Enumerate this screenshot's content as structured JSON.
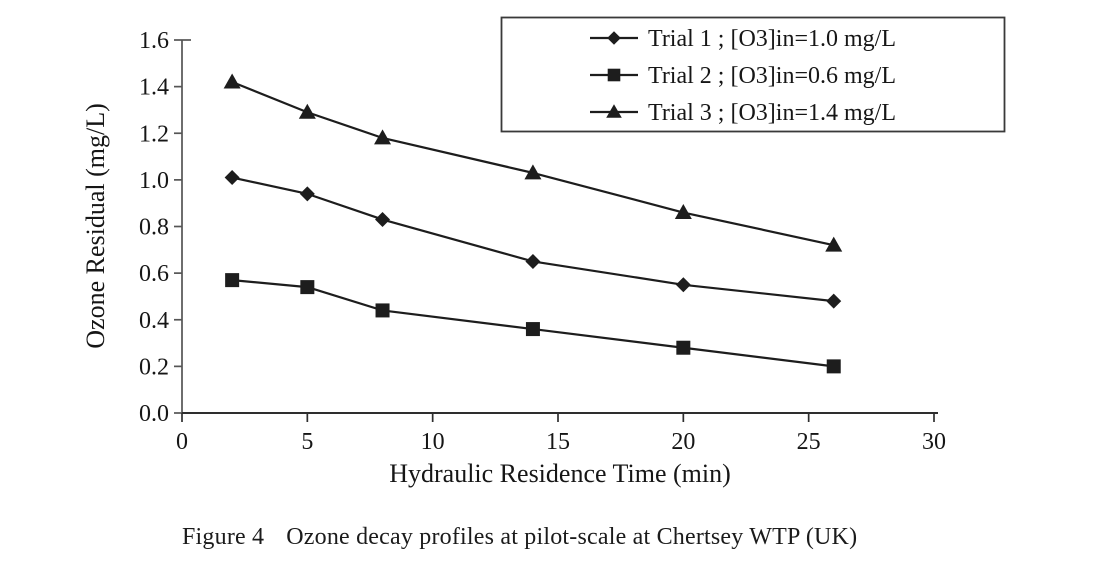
{
  "figure": {
    "caption_label": "Figure 4",
    "caption_text": "Ozone decay profiles at pilot-scale at Chertsey WTP (UK)"
  },
  "chart_data": {
    "type": "line",
    "title": "",
    "xlabel": "Hydraulic Residence Time (min)",
    "ylabel": "Ozone Residual (mg/L)",
    "xlim": [
      0,
      30
    ],
    "ylim": [
      0.0,
      1.6
    ],
    "xticks": [
      0,
      5,
      10,
      15,
      20,
      25,
      30
    ],
    "yticks": [
      0.0,
      0.2,
      0.4,
      0.6,
      0.8,
      1.0,
      1.2,
      1.4,
      1.6
    ],
    "ytick_labels": [
      "0.0",
      "0.2",
      "0.4",
      "0.6",
      "0.8",
      "1.0",
      "1.2",
      "1.4",
      "1.6"
    ],
    "grid": false,
    "legend_position": "top-right",
    "line_color": "#1d1d1d",
    "axis_color": "#3a3a3a",
    "x": [
      2,
      5,
      8,
      14,
      20,
      26
    ],
    "series": [
      {
        "name": "Trial 1 ; [O3]in=1.0 mg/L",
        "marker": "diamond",
        "color": "#1d1d1d",
        "values": [
          1.01,
          0.94,
          0.83,
          0.65,
          0.55,
          0.48
        ]
      },
      {
        "name": "Trial 2 ; [O3]in=0.6 mg/L",
        "marker": "square",
        "color": "#1d1d1d",
        "values": [
          0.57,
          0.54,
          0.44,
          0.36,
          0.28,
          0.2
        ]
      },
      {
        "name": "Trial 3 ; [O3]in=1.4 mg/L",
        "marker": "triangle",
        "color": "#1d1d1d",
        "values": [
          1.42,
          1.29,
          1.18,
          1.03,
          0.86,
          0.72
        ]
      }
    ]
  }
}
